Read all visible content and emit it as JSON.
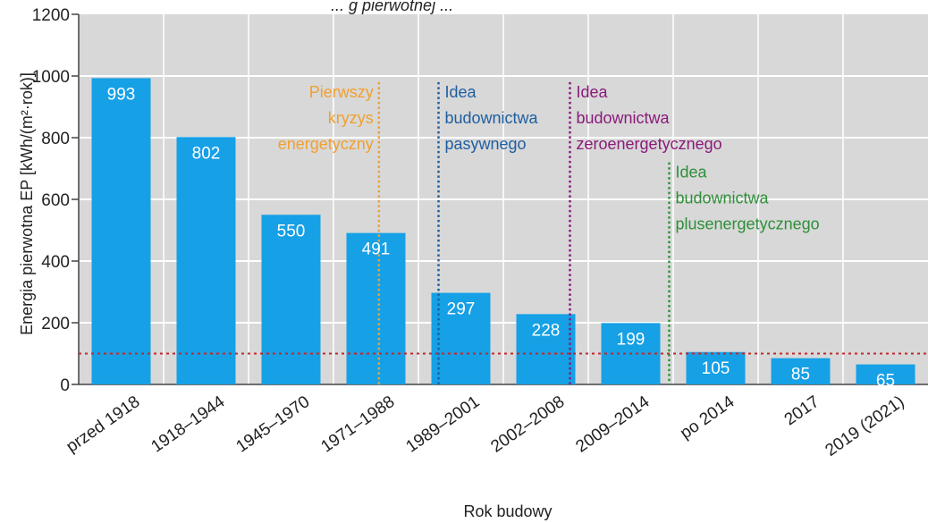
{
  "chart_data": {
    "type": "bar",
    "title_partial": "... g pierwotnej ...",
    "xlabel": "Rok budowy",
    "ylabel": "Energia pierwotna EP [kWh/(m²·rok)]",
    "ylim": [
      0,
      1200
    ],
    "yticks": [
      "0",
      "200",
      "400",
      "600",
      "800",
      "1000",
      "1200"
    ],
    "grid": true,
    "categories": [
      "przed 1918",
      "1918–1944",
      "1945–1970",
      "1971–1988",
      "1989–2001",
      "2002–2008",
      "2009–2014",
      "po 2014",
      "2017",
      "2019 (2021)"
    ],
    "values": [
      993,
      802,
      550,
      491,
      297,
      228,
      199,
      105,
      85,
      65
    ],
    "value_labels": [
      "993",
      "802",
      "550",
      "491",
      "297",
      "228",
      "199",
      "105",
      "85",
      "65"
    ],
    "reference_line": {
      "value": 100,
      "style": "dotted"
    },
    "annotations": [
      {
        "lines": [
          "Pierwszy",
          "kryzys",
          "energetyczny"
        ],
        "x_between": [
          "1971–1988",
          "1971–1988"
        ],
        "color": "#f0a030",
        "y_top": 980
      },
      {
        "lines": [
          "Idea",
          "budownictwa",
          "pasywnego"
        ],
        "x_between": [
          "1989–2001"
        ],
        "color": "#1f5fa0",
        "y_top": 980
      },
      {
        "lines": [
          "Idea",
          "budownictwa",
          "zeroenergetycznego"
        ],
        "x_between": [
          "2002–2008"
        ],
        "color": "#8a1a7a",
        "y_top": 980
      },
      {
        "lines": [
          "Idea",
          "budownictwa",
          "plusenergetycznego"
        ],
        "x_between": [
          "2009–2014"
        ],
        "color": "#2f8f3a",
        "y_top": 720
      }
    ]
  },
  "colors": {
    "plot_bg": "#d8d8d8",
    "bar": "#16a0e6",
    "grid": "#ffffff",
    "ref_line": "#c0282c"
  }
}
